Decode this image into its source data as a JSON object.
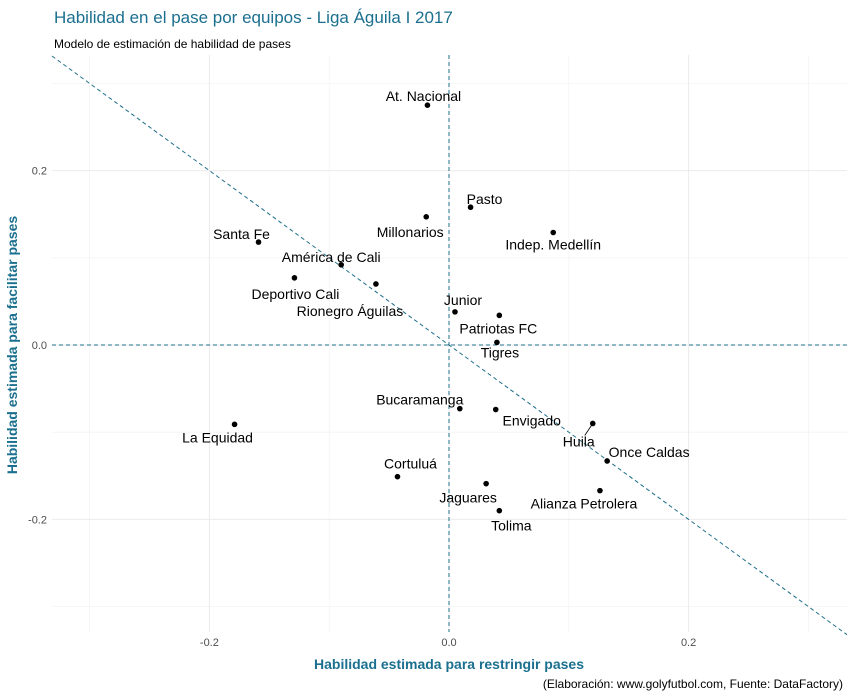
{
  "title": "Habilidad en el pase por equipos - Liga Águila I 2017",
  "subtitle": "Modelo de estimación de habilidad de pases",
  "caption": "(Elaboración: www.golyfutbol.com, Fuente: DataFactory)",
  "colors": {
    "accent": "#1b6f8f",
    "refline": "#1f6f8b",
    "grid": "#ebebeb",
    "point": "#000000"
  },
  "chart_data": {
    "type": "scatter",
    "title": "Habilidad en el pase por equipos - Liga Águila I 2017",
    "xlabel": "Habilidad estimada para restringir pases",
    "ylabel": "Habilidad estimada para facilitar pases",
    "xlim": [
      -0.33,
      0.33
    ],
    "ylim": [
      -0.32,
      0.33
    ],
    "x_ticks": [
      -0.2,
      0.0,
      0.2
    ],
    "y_ticks": [
      -0.2,
      0.0,
      0.2
    ],
    "x_tick_labels": [
      "-0.2",
      "0.0",
      "0.2"
    ],
    "y_tick_labels": [
      "-0.2",
      "0.0",
      "0.2"
    ],
    "reference_lines": {
      "vertical_x": 0.0,
      "horizontal_y": 0.0,
      "diagonal": "y = -x"
    },
    "points": [
      {
        "team": "At. Nacional",
        "x": -0.018,
        "y": 0.275
      },
      {
        "team": "Pasto",
        "x": 0.018,
        "y": 0.158
      },
      {
        "team": "Millonarios",
        "x": -0.019,
        "y": 0.147
      },
      {
        "team": "Indep. Medellín",
        "x": 0.087,
        "y": 0.129
      },
      {
        "team": "Santa Fe",
        "x": -0.159,
        "y": 0.118
      },
      {
        "team": "América de Cali",
        "x": -0.09,
        "y": 0.092
      },
      {
        "team": "Deportivo Cali",
        "x": -0.129,
        "y": 0.077
      },
      {
        "team": "Rionegro Águilas",
        "x": -0.061,
        "y": 0.07
      },
      {
        "team": "Junior",
        "x": 0.005,
        "y": 0.038
      },
      {
        "team": "Patriotas FC",
        "x": 0.042,
        "y": 0.034
      },
      {
        "team": "Tigres",
        "x": 0.04,
        "y": 0.003
      },
      {
        "team": "Bucaramanga",
        "x": 0.009,
        "y": -0.073
      },
      {
        "team": "Envigado",
        "x": 0.039,
        "y": -0.074
      },
      {
        "team": "La Equidad",
        "x": -0.179,
        "y": -0.091
      },
      {
        "team": "Huila",
        "x": 0.12,
        "y": -0.09
      },
      {
        "team": "Once Caldas",
        "x": 0.132,
        "y": -0.133
      },
      {
        "team": "Cortuluá",
        "x": -0.043,
        "y": -0.151
      },
      {
        "team": "Jaguares",
        "x": 0.031,
        "y": -0.159
      },
      {
        "team": "Alianza Petrolera",
        "x": 0.126,
        "y": -0.167
      },
      {
        "team": "Tolima",
        "x": 0.042,
        "y": -0.19
      }
    ]
  }
}
